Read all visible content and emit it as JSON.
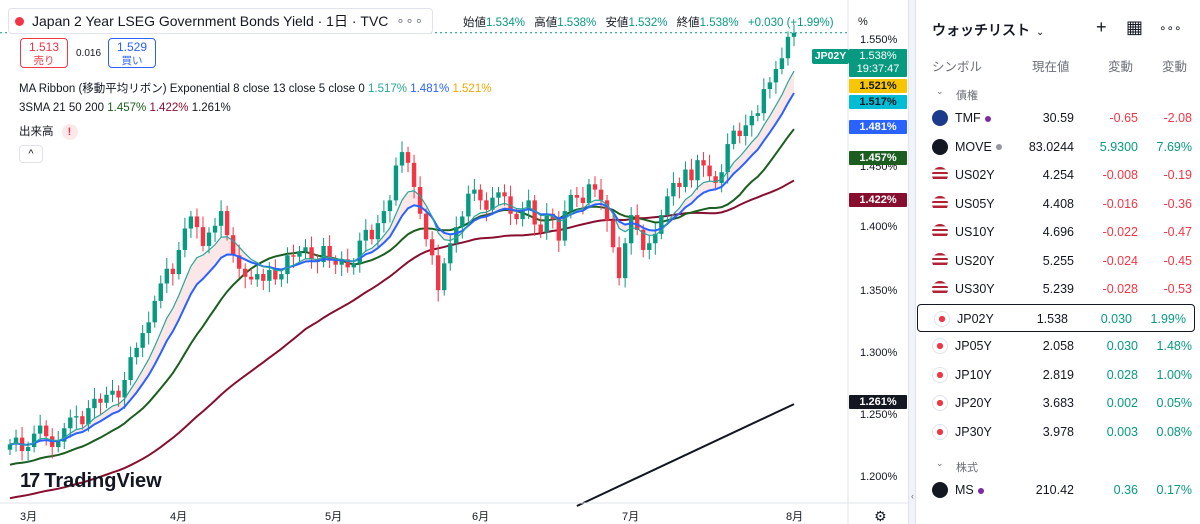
{
  "header": {
    "title": "Japan 2 Year LSEG Government Bonds Yield · 1日 · TVC",
    "ohlc": {
      "open_label": "始値",
      "open": "1.534%",
      "high_label": "高値",
      "high": "1.538%",
      "low_label": "安値",
      "low": "1.532%",
      "close_label": "終値",
      "close": "1.538%",
      "change": "+0.030 (+1.99%)"
    }
  },
  "trade": {
    "sell_price": "1.513",
    "sell_label": "売り",
    "buy_price": "1.529",
    "buy_label": "買い",
    "spread": "0.016"
  },
  "indicators": {
    "ma_ribbon_label": "MA Ribbon (移動平均リボン) Exponential 8 close 13 close 5 close 0",
    "ma_ribbon_v1": "1.517%",
    "ma_ribbon_v2": "1.481%",
    "ma_ribbon_v3": "1.521%",
    "sma_label": "3SMA 21 50 200",
    "sma_v1": "1.457%",
    "sma_v2": "1.422%",
    "sma_v3": "1.261%",
    "volume_label": "出来高",
    "volume_warn": "!",
    "collapse": "^"
  },
  "logo": "TradingView",
  "x_axis": [
    "3月",
    "4月",
    "5月",
    "6月",
    "7月",
    "8月"
  ],
  "y_axis": {
    "unit": "%",
    "ticks": [
      "1.550%",
      "1.450%",
      "1.400%",
      "1.350%",
      "1.300%",
      "1.250%",
      "1.200%"
    ]
  },
  "price_scale": {
    "symbol": "JP02Y",
    "current": "1.538%",
    "countdown": "19:37:47",
    "tags": [
      {
        "id": "t1",
        "text": "1.521%",
        "color": "#f7c600"
      },
      {
        "id": "t2",
        "text": "1.517%",
        "color": "#00bcd4"
      },
      {
        "id": "t3",
        "text": "1.481%",
        "color": "#2962ff"
      },
      {
        "id": "t4",
        "text": "1.457%",
        "color": "#1b5e20"
      },
      {
        "id": "t5",
        "text": "1.422%",
        "color": "#880e2f"
      },
      {
        "id": "t6",
        "text": "1.261%",
        "color": "#131722"
      }
    ]
  },
  "colors": {
    "up": "#089981",
    "down": "#f23645",
    "ema_fast": "#26a69a",
    "ema_mid": "#2962ff",
    "sma21": "#1b5e20",
    "sma50": "#880e2f",
    "sma200": "#131722"
  },
  "chart_data": {
    "type": "candlestick",
    "title": "Japan 2 Year LSEG Government Bonds Yield · 1日 · TVC",
    "ylabel": "%",
    "ylim": [
      1.185,
      1.555
    ],
    "x_months": [
      "3月",
      "4月",
      "5月",
      "6月",
      "7月",
      "8月"
    ],
    "closes": [
      1.231,
      1.236,
      1.226,
      1.229,
      1.239,
      1.245,
      1.237,
      1.229,
      1.233,
      1.243,
      1.251,
      1.252,
      1.246,
      1.258,
      1.265,
      1.262,
      1.268,
      1.271,
      1.266,
      1.279,
      1.296,
      1.303,
      1.314,
      1.322,
      1.338,
      1.351,
      1.362,
      1.358,
      1.376,
      1.392,
      1.401,
      1.393,
      1.379,
      1.389,
      1.394,
      1.405,
      1.387,
      1.372,
      1.362,
      1.356,
      1.354,
      1.358,
      1.353,
      1.361,
      1.354,
      1.358,
      1.372,
      1.371,
      1.375,
      1.378,
      1.369,
      1.367,
      1.379,
      1.368,
      1.365,
      1.369,
      1.363,
      1.366,
      1.383,
      1.391,
      1.384,
      1.396,
      1.405,
      1.413,
      1.439,
      1.449,
      1.441,
      1.423,
      1.403,
      1.384,
      1.372,
      1.346,
      1.366,
      1.381,
      1.393,
      1.401,
      1.418,
      1.421,
      1.413,
      1.406,
      1.415,
      1.419,
      1.416,
      1.403,
      1.399,
      1.406,
      1.413,
      1.395,
      1.389,
      1.403,
      1.399,
      1.383,
      1.405,
      1.417,
      1.415,
      1.411,
      1.425,
      1.421,
      1.413,
      1.398,
      1.378,
      1.355,
      1.381,
      1.402,
      1.391,
      1.376,
      1.381,
      1.388,
      1.402,
      1.416,
      1.426,
      1.423,
      1.436,
      1.428,
      1.443,
      1.439,
      1.431,
      1.426,
      1.434,
      1.455,
      1.465,
      1.461,
      1.469,
      1.476,
      1.478,
      1.496,
      1.501,
      1.511,
      1.519,
      1.535,
      1.538
    ],
    "series": [
      {
        "name": "EMA 8",
        "last": 1.517
      },
      {
        "name": "EMA 13",
        "last": 1.481
      },
      {
        "name": "SMA 21",
        "last": 1.457
      },
      {
        "name": "SMA 50",
        "last": 1.422
      },
      {
        "name": "SMA 200",
        "last": 1.261
      }
    ]
  },
  "watchlist": {
    "title": "ウォッチリスト",
    "add_icon": "+",
    "layout_icon": "▦",
    "more_icon": "∘∘∘",
    "columns": {
      "symbol": "シンボル",
      "last": "現在値",
      "change": "変動",
      "change_pct": "変動"
    },
    "sections": [
      {
        "label": "債権",
        "rows": [
          {
            "sym": "TMF",
            "last": "30.59",
            "chg": "-0.65",
            "pct": "-2.08",
            "dir": "neg",
            "icon": "etf-icon",
            "icon_bg": "#1e3a8a",
            "dot": "#7b2ba4"
          },
          {
            "sym": "MOVE",
            "last": "83.0244",
            "chg": "5.9300",
            "pct": "7.69%",
            "dir": "pos",
            "icon": "index-icon",
            "icon_bg": "#131722",
            "dot": "#9598a1"
          },
          {
            "sym": "US02Y",
            "last": "4.254",
            "chg": "-0.008",
            "pct": "-0.19",
            "dir": "neg",
            "icon": "us-flag-icon"
          },
          {
            "sym": "US05Y",
            "last": "4.408",
            "chg": "-0.016",
            "pct": "-0.36",
            "dir": "neg",
            "icon": "us-flag-icon"
          },
          {
            "sym": "US10Y",
            "last": "4.696",
            "chg": "-0.022",
            "pct": "-0.47",
            "dir": "neg",
            "icon": "us-flag-icon"
          },
          {
            "sym": "US20Y",
            "last": "5.255",
            "chg": "-0.024",
            "pct": "-0.45",
            "dir": "neg",
            "icon": "us-flag-icon"
          },
          {
            "sym": "US30Y",
            "last": "5.239",
            "chg": "-0.028",
            "pct": "-0.53",
            "dir": "neg",
            "icon": "us-flag-icon"
          },
          {
            "sym": "JP02Y",
            "last": "1.538",
            "chg": "0.030",
            "pct": "1.99%",
            "dir": "pos",
            "icon": "jp-flag-icon",
            "selected": true
          },
          {
            "sym": "JP05Y",
            "last": "2.058",
            "chg": "0.030",
            "pct": "1.48%",
            "dir": "pos",
            "icon": "jp-flag-icon"
          },
          {
            "sym": "JP10Y",
            "last": "2.819",
            "chg": "0.028",
            "pct": "1.00%",
            "dir": "pos",
            "icon": "jp-flag-icon"
          },
          {
            "sym": "JP20Y",
            "last": "3.683",
            "chg": "0.002",
            "pct": "0.05%",
            "dir": "pos",
            "icon": "jp-flag-icon"
          },
          {
            "sym": "JP30Y",
            "last": "3.978",
            "chg": "0.003",
            "pct": "0.08%",
            "dir": "pos",
            "icon": "jp-flag-icon"
          }
        ]
      },
      {
        "label": "株式",
        "rows": [
          {
            "sym": "MS",
            "last": "210.42",
            "chg": "0.36",
            "pct": "0.17%",
            "dir": "pos",
            "icon": "ms-logo-icon",
            "icon_bg": "#131722",
            "dot": "#7b2ba4"
          }
        ]
      }
    ]
  }
}
